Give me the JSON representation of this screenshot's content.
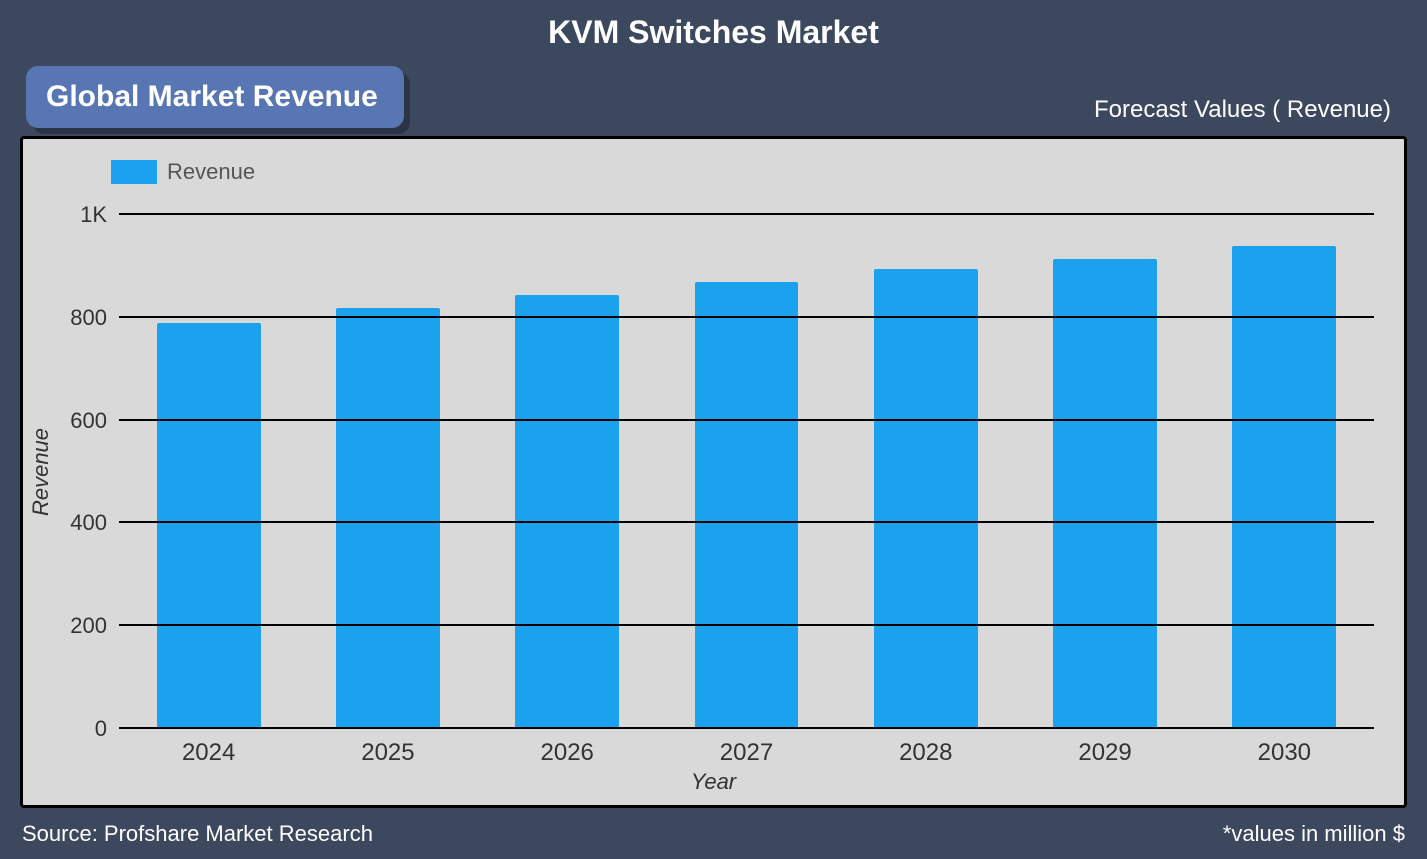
{
  "title": "KVM Switches Market",
  "badge_label": "Global Market Revenue",
  "forecast_label": "Forecast Values ( Revenue)",
  "footer_source": "Source: Profshare Market Research",
  "footer_note": "*values in million $",
  "legend_label": "Revenue",
  "colors": {
    "page_bg": "#3c485e",
    "chart_bg": "#d9d9d9",
    "badge_bg": "#5876b3",
    "badge_shadow": "#2a3446",
    "bar": "#1ba2ef",
    "title_text": "#ffffff",
    "gridline": "#000000"
  },
  "chart": {
    "type": "bar",
    "xlabel": "Year",
    "ylabel": "Revenue",
    "categories": [
      "2024",
      "2025",
      "2026",
      "2027",
      "2028",
      "2029",
      "2030"
    ],
    "values": [
      790,
      820,
      845,
      870,
      895,
      915,
      940
    ],
    "ylim": [
      0,
      1000
    ],
    "yticks": [
      0,
      200,
      400,
      600,
      800,
      1000
    ],
    "ytick_labels": [
      "0",
      "200",
      "400",
      "600",
      "800",
      "1K"
    ],
    "bar_width_ratio": 0.58,
    "tick_fontsize": 22,
    "label_fontsize": 22
  }
}
